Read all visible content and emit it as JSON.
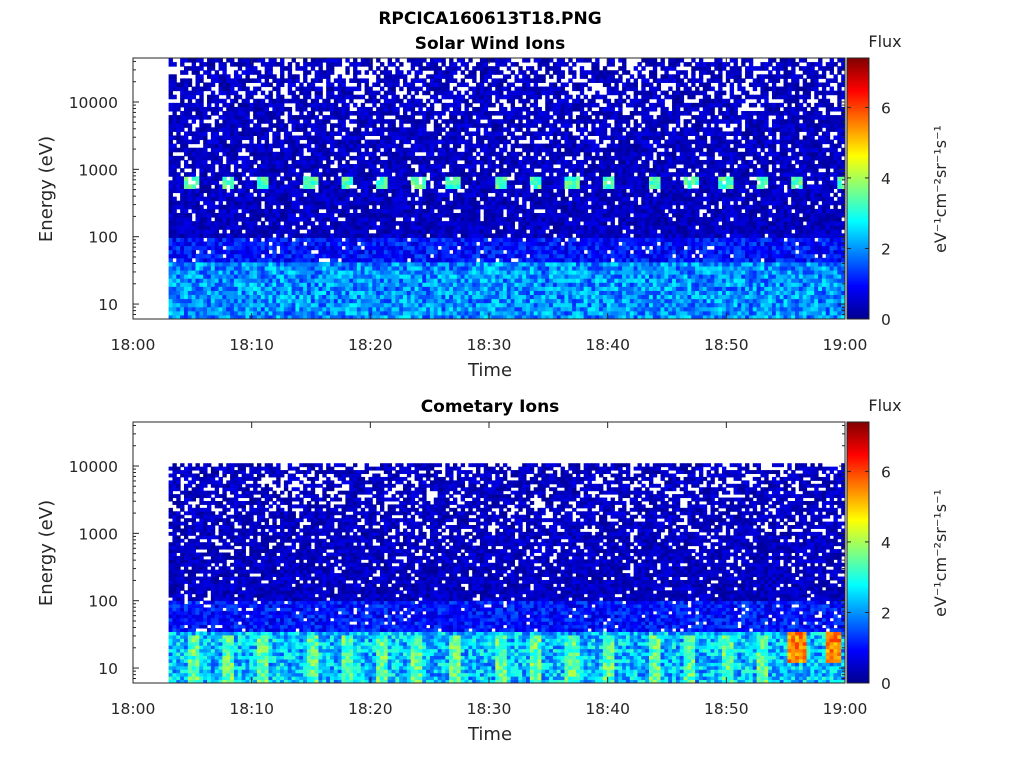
{
  "figure": {
    "filename_title": "RPCICA160613T18.PNG"
  },
  "chart_data": [
    {
      "type": "heatmap",
      "title": "Solar Wind Ions",
      "xlabel": "Time",
      "ylabel": "Energy (eV)",
      "x_ticks": [
        "18:00",
        "18:10",
        "18:20",
        "18:30",
        "18:40",
        "18:50",
        "19:00"
      ],
      "x_range": [
        "18:00",
        "19:00"
      ],
      "data_start": "18:03",
      "y_scale": "log",
      "y_ticks": [
        "10",
        "100",
        "1000",
        "10000"
      ],
      "y_range": [
        6,
        45000
      ],
      "energy_max": 45000,
      "colorbar": {
        "title": "Flux",
        "unit": "eV⁻¹cm⁻²sr⁻¹s⁻¹",
        "range": [
          0,
          7.4
        ],
        "ticks": [
          "0",
          "2",
          "4",
          "6"
        ]
      },
      "features": {
        "periodic_peak_energy_eV": 650,
        "periodic_peak_times": [
          "18:05",
          "18:08",
          "18:11",
          "18:15",
          "18:18",
          "18:21",
          "18:24",
          "18:27",
          "18:31",
          "18:34",
          "18:37",
          "18:40",
          "18:44",
          "18:47",
          "18:50",
          "18:53",
          "18:56",
          "19:00"
        ],
        "periodic_peak_flux": 3.5,
        "low_energy_band_eV": [
          6,
          40
        ],
        "low_energy_flux": 2.2
      }
    },
    {
      "type": "heatmap",
      "title": "Cometary Ions",
      "xlabel": "Time",
      "ylabel": "Energy (eV)",
      "x_ticks": [
        "18:00",
        "18:10",
        "18:20",
        "18:30",
        "18:40",
        "18:50",
        "19:00"
      ],
      "x_range": [
        "18:00",
        "19:00"
      ],
      "data_start": "18:03",
      "y_scale": "log",
      "y_ticks": [
        "10",
        "100",
        "1000",
        "10000"
      ],
      "y_range": [
        6,
        45000
      ],
      "energy_max": 11000,
      "colorbar": {
        "title": "Flux",
        "unit": "eV⁻¹cm⁻²sr⁻¹s⁻¹",
        "range": [
          0,
          7.4
        ],
        "ticks": [
          "0",
          "2",
          "4",
          "6"
        ]
      },
      "features": {
        "low_energy_band_eV": [
          6,
          35
        ],
        "low_energy_flux": 2.6,
        "burst_times": [
          "18:05",
          "18:08",
          "18:11",
          "18:15",
          "18:18",
          "18:21",
          "18:24",
          "18:27",
          "18:31",
          "18:34",
          "18:37",
          "18:40",
          "18:44",
          "18:47",
          "18:50",
          "18:53"
        ],
        "burst_flux": 3.8,
        "strong_burst_times": [
          "18:56",
          "18:59"
        ],
        "strong_burst_energy_eV": [
          12,
          35
        ],
        "strong_burst_flux": 5.8
      }
    }
  ]
}
